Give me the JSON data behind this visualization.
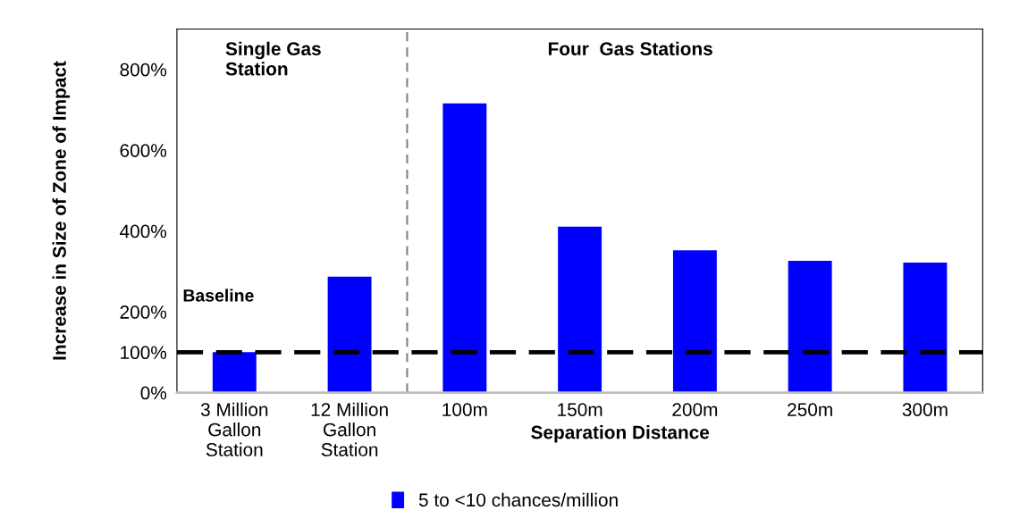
{
  "chart_data": {
    "type": "bar",
    "categories": [
      "3 Million\nGallon\nStation",
      "12 Million\nGallon\nStation",
      "100m",
      "150m",
      "200m",
      "250m",
      "300m"
    ],
    "series": [
      {
        "name": "5 to <10 chances/million",
        "color": "#0000ff",
        "values": [
          100,
          287,
          716,
          411,
          352,
          326,
          322
        ]
      }
    ],
    "xlabel": "Separation Distance",
    "ylabel": "Increase in Size of Zone of Impact",
    "ylim": [
      0,
      900
    ],
    "yticks": [
      {
        "value": 0,
        "label": "0%"
      },
      {
        "value": 100,
        "label": "100%"
      },
      {
        "value": 200,
        "label": "200%"
      },
      {
        "value": 400,
        "label": "400%"
      },
      {
        "value": 600,
        "label": "600%"
      },
      {
        "value": 800,
        "label": "800%"
      }
    ],
    "ref_lines": [
      {
        "axis": "y",
        "value": 100,
        "label": "Baseline",
        "color": "#000000",
        "line_style": "dashed"
      }
    ],
    "annotations": [
      "Single Gas\nStation",
      "Four  Gas Stations"
    ],
    "grid": false,
    "legend": "bottom"
  }
}
